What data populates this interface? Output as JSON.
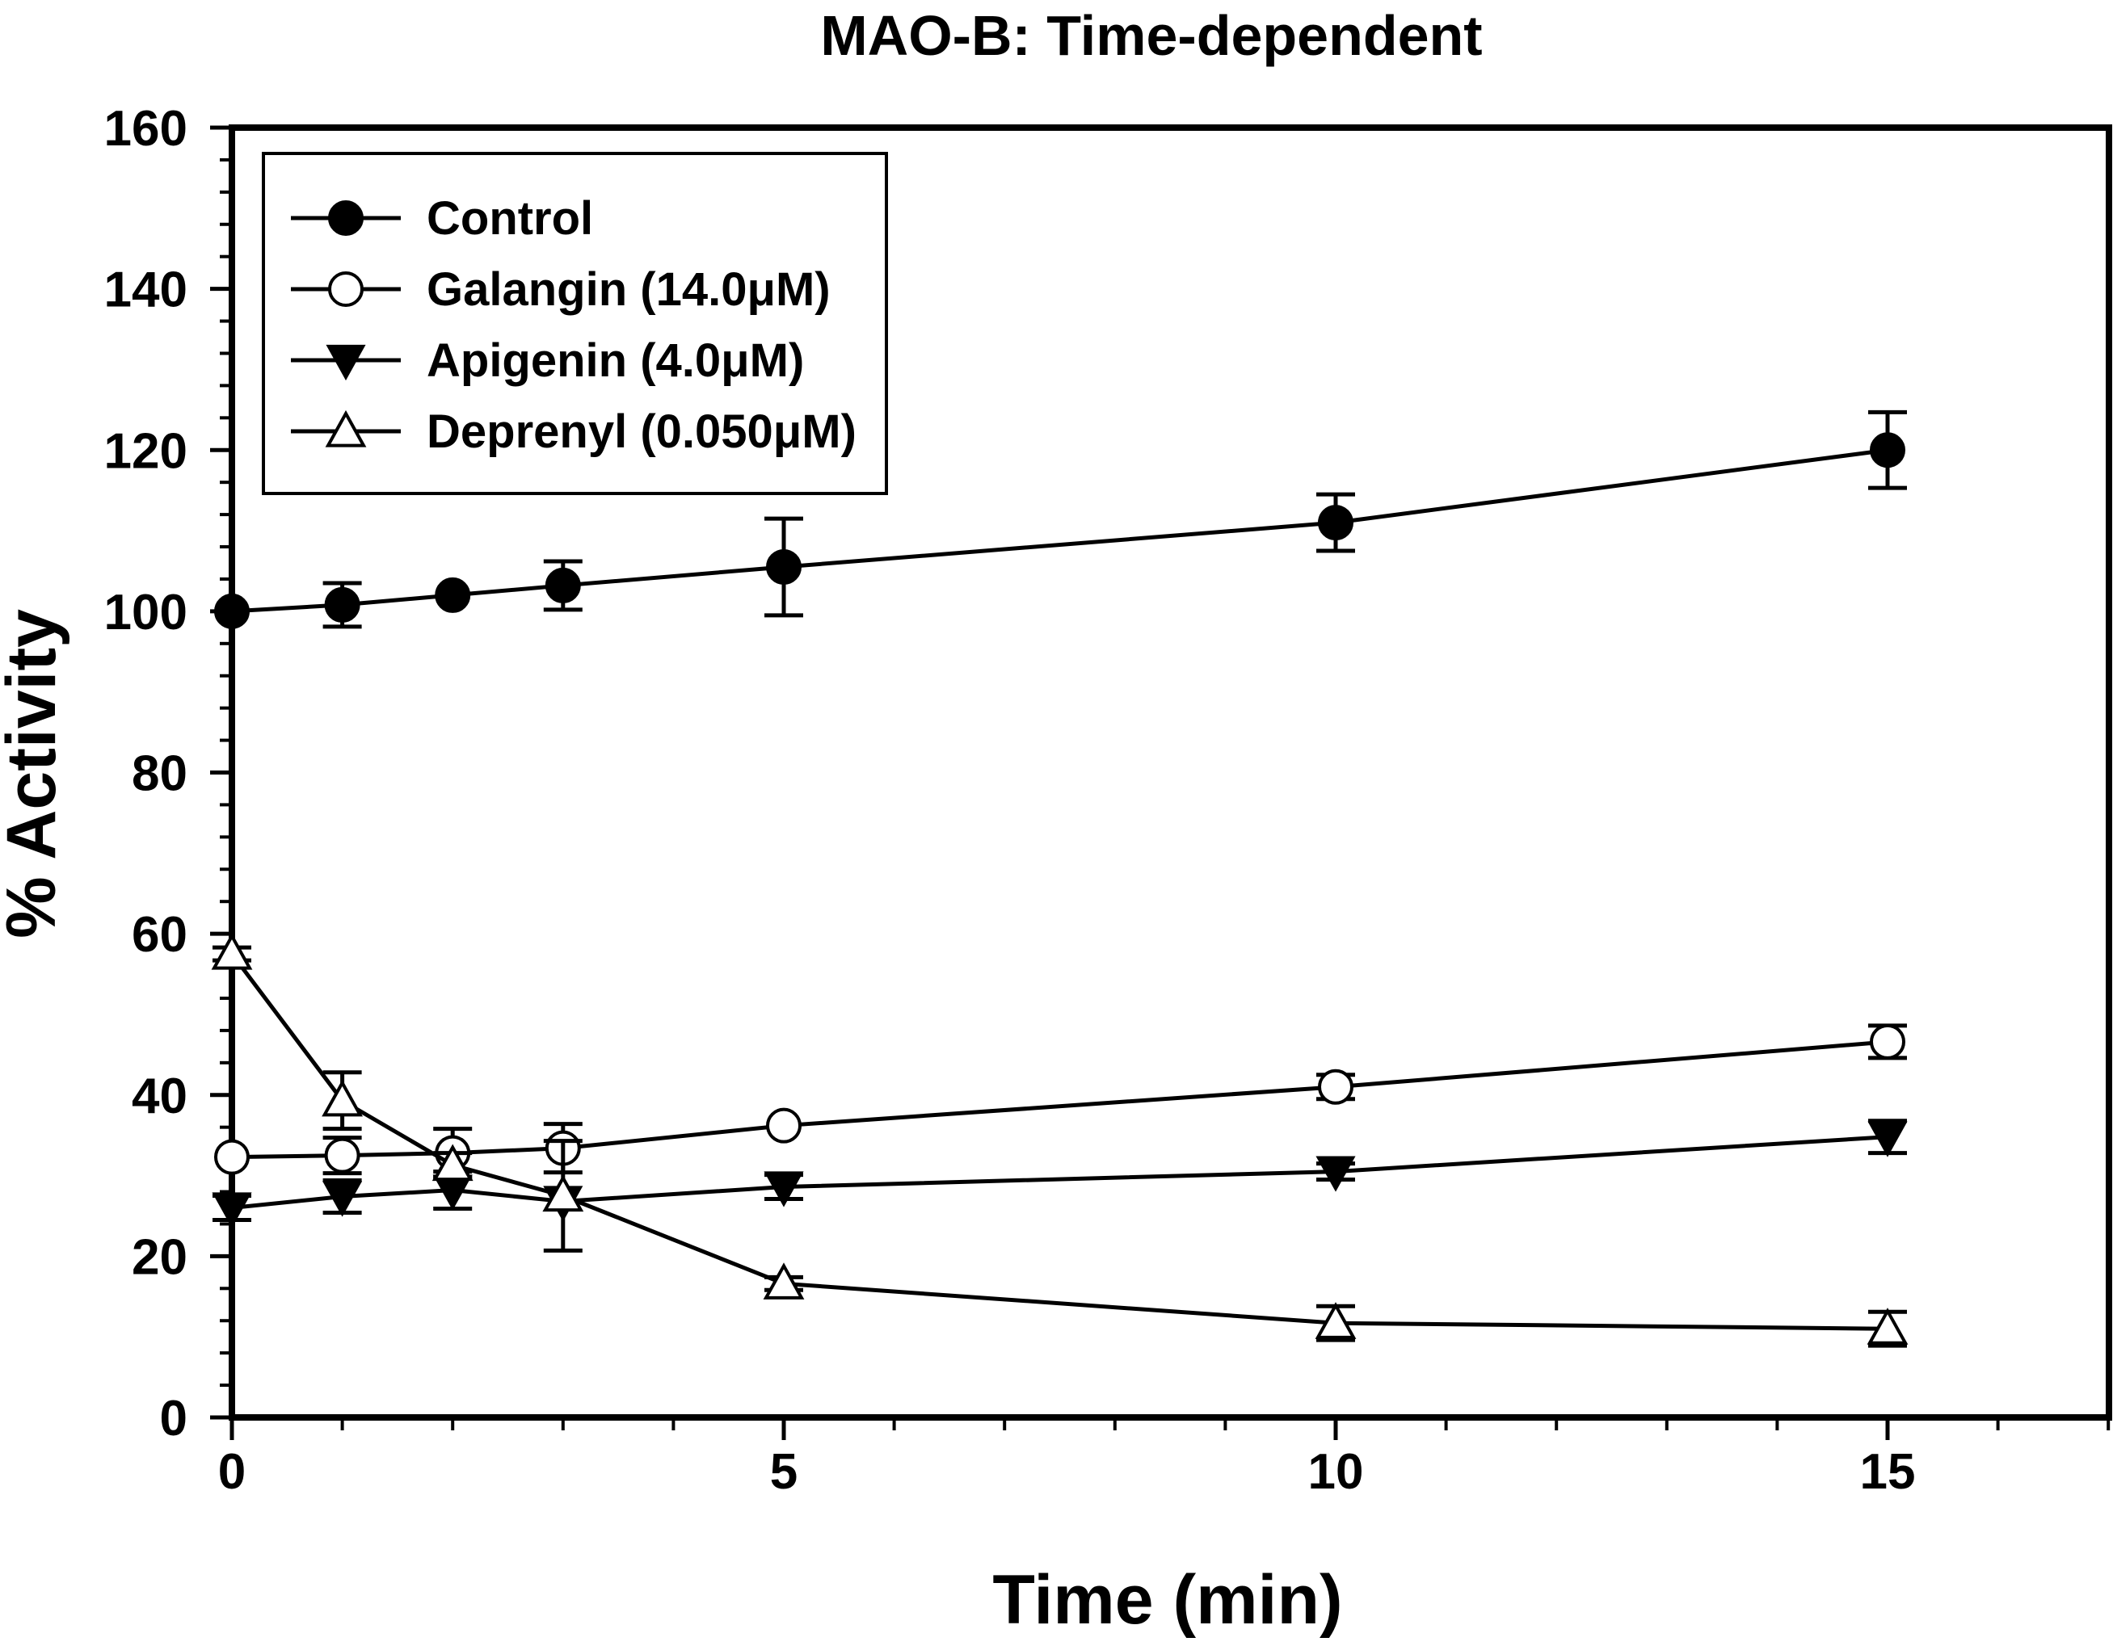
{
  "chart_data": {
    "type": "line",
    "title": "MAO-B: Time-dependent",
    "xlabel": "Time (min)",
    "ylabel": "% Activity",
    "xlim": [
      0,
      17
    ],
    "ylim": [
      0,
      160
    ],
    "xticks": [
      0,
      5,
      10,
      15
    ],
    "yticks": [
      0,
      20,
      40,
      60,
      80,
      100,
      120,
      140,
      160
    ],
    "x_minor_step": 1,
    "y_minor_step": 4,
    "grid": false,
    "legend_position": "top-left",
    "series": [
      {
        "name": "Control",
        "marker": "circle-filled",
        "x": [
          0,
          1,
          2,
          3,
          5,
          10,
          15
        ],
        "y": [
          100,
          100.8,
          102,
          103.2,
          105.5,
          111,
          120
        ],
        "err": [
          0,
          2.7,
          0,
          3,
          6,
          3.5,
          4.7
        ]
      },
      {
        "name": "Galangin (14.0μM)",
        "marker": "circle-open",
        "x": [
          0,
          1,
          2,
          3,
          5,
          10,
          15
        ],
        "y": [
          32.3,
          32.5,
          32.8,
          33.4,
          36.2,
          41,
          46.6
        ],
        "err": [
          0,
          2.2,
          3,
          3,
          0,
          1.5,
          2
        ]
      },
      {
        "name": "Apigenin (4.0μM)",
        "marker": "triangle-down-filled",
        "x": [
          0,
          1,
          2,
          3,
          5,
          10,
          15
        ],
        "y": [
          26,
          27.4,
          28.2,
          26.8,
          28.6,
          30.5,
          34.8
        ],
        "err": [
          1.5,
          2,
          2.3,
          0,
          1.5,
          1,
          2
        ]
      },
      {
        "name": "Deprenyl (0.050μM)",
        "marker": "triangle-up-open",
        "x": [
          0,
          1,
          2,
          3,
          5,
          10,
          15
        ],
        "y": [
          57.5,
          39.3,
          31.3,
          27.5,
          16.6,
          11.7,
          11
        ],
        "err": [
          0.8,
          3.5,
          1.5,
          6.8,
          0.8,
          2.1,
          2.1
        ]
      }
    ]
  }
}
